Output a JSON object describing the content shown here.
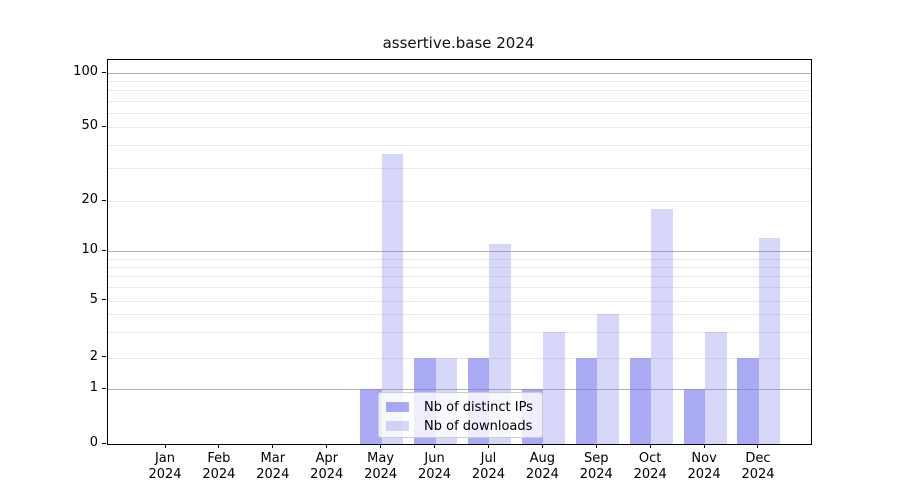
{
  "title": "assertive.base 2024",
  "legend": {
    "items": [
      {
        "label": "Nb of distinct IPs",
        "series": "distinct_ips"
      },
      {
        "label": "Nb of downloads",
        "series": "downloads"
      }
    ]
  },
  "colors": {
    "bar_base": "#7c7cf0",
    "distinct_ips_fill": "rgba(124,124,240,0.65)",
    "downloads_fill": "rgba(124,124,240,0.30)",
    "grid_major": "#b0b0b0",
    "grid_minor": "#eaeaea",
    "spine": "#000000"
  },
  "chart_data": {
    "type": "bar",
    "title": "assertive.base 2024",
    "xlabel": "",
    "ylabel": "",
    "grid": true,
    "legend_position": "inside lower-center",
    "categories": [
      {
        "month": "Jan",
        "year": "2024"
      },
      {
        "month": "Feb",
        "year": "2024"
      },
      {
        "month": "Mar",
        "year": "2024"
      },
      {
        "month": "Apr",
        "year": "2024"
      },
      {
        "month": "May",
        "year": "2024"
      },
      {
        "month": "Jun",
        "year": "2024"
      },
      {
        "month": "Jul",
        "year": "2024"
      },
      {
        "month": "Aug",
        "year": "2024"
      },
      {
        "month": "Sep",
        "year": "2024"
      },
      {
        "month": "Oct",
        "year": "2024"
      },
      {
        "month": "Nov",
        "year": "2024"
      },
      {
        "month": "Dec",
        "year": "2024"
      }
    ],
    "series": [
      {
        "name": "Nb of distinct IPs",
        "values": [
          0,
          0,
          0,
          0,
          1,
          2,
          2,
          1,
          2,
          2,
          1,
          2
        ]
      },
      {
        "name": "Nb of downloads",
        "values": [
          0,
          0,
          0,
          0,
          36,
          2,
          11,
          3,
          4,
          18,
          3,
          12
        ]
      }
    ],
    "y_axis": {
      "scale": "log-like (linear 0-1, log above)",
      "tick_labels": [
        0,
        1,
        2,
        5,
        10,
        20,
        50,
        100
      ],
      "ylim": [
        0,
        110
      ],
      "gridlines_major": [
        1,
        10,
        100
      ],
      "gridlines_minor": [
        2,
        3,
        4,
        5,
        6,
        7,
        8,
        9,
        20,
        30,
        40,
        50,
        60,
        70,
        80,
        90
      ]
    }
  }
}
